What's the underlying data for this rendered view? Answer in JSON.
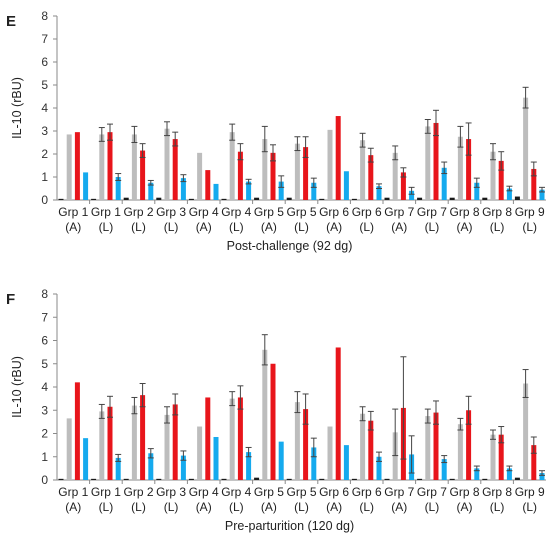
{
  "chart_data": [
    {
      "type": "bar",
      "panel_label": "E",
      "ylabel": "IL-10 (rBU)",
      "xlabel": "Post-challenge (92 dg)",
      "ylim": [
        0,
        8
      ],
      "yticks": [
        0,
        1,
        2,
        3,
        4,
        5,
        6,
        7,
        8
      ],
      "grid": false,
      "categories": [
        {
          "line1": "Grp 1",
          "line2": "(A)"
        },
        {
          "line1": "Grp 1",
          "line2": "(L)"
        },
        {
          "line1": "Grp 2",
          "line2": "(L)"
        },
        {
          "line1": "Grp 3",
          "line2": "(L)"
        },
        {
          "line1": "Grp 4",
          "line2": "(A)"
        },
        {
          "line1": "Grp 4",
          "line2": "(L)"
        },
        {
          "line1": "Grp 5",
          "line2": "(A)"
        },
        {
          "line1": "Grp 5",
          "line2": "(L)"
        },
        {
          "line1": "Grp 6",
          "line2": "(A)"
        },
        {
          "line1": "Grp 6",
          "line2": "(L)"
        },
        {
          "line1": "Grp 7",
          "line2": "(A)"
        },
        {
          "line1": "Grp 7",
          "line2": "(L)"
        },
        {
          "line1": "Grp 8",
          "line2": "(A)"
        },
        {
          "line1": "Grp 8",
          "line2": "(L)"
        },
        {
          "line1": "Grp 9",
          "line2": "(L)"
        }
      ],
      "series": [
        {
          "color": "#1a1a1a",
          "values": [
            0.05,
            0.05,
            0.1,
            0.1,
            0.05,
            0.05,
            0.1,
            0.1,
            0.05,
            0.05,
            0.1,
            0.1,
            0.1,
            0.1,
            0.15
          ],
          "errors": [
            0,
            0,
            0,
            0,
            0,
            0,
            0,
            0,
            0,
            0,
            0,
            0,
            0,
            0,
            0
          ]
        },
        {
          "color": "#bdbdbd",
          "values": [
            2.85,
            2.85,
            2.85,
            3.1,
            2.05,
            2.95,
            2.65,
            2.45,
            3.05,
            2.6,
            2.05,
            3.2,
            2.75,
            2.1,
            4.45
          ],
          "errors": [
            0,
            0.3,
            0.35,
            0.3,
            0,
            0.35,
            0.55,
            0.3,
            0,
            0.3,
            0.3,
            0.3,
            0.45,
            0.35,
            0.45
          ]
        },
        {
          "color": "#e8151b",
          "values": [
            2.95,
            2.95,
            2.15,
            2.65,
            1.3,
            2.1,
            2.05,
            2.3,
            3.65,
            1.95,
            1.2,
            3.35,
            2.65,
            1.7,
            1.35
          ],
          "errors": [
            0,
            0.35,
            0.3,
            0.3,
            0,
            0.35,
            0.35,
            0.45,
            0,
            0.3,
            0.2,
            0.55,
            0.7,
            0.4,
            0.3
          ]
        },
        {
          "color": "#15aaee",
          "values": [
            1.2,
            1.0,
            0.75,
            0.95,
            0.7,
            0.8,
            0.8,
            0.75,
            1.25,
            0.6,
            0.4,
            1.4,
            0.75,
            0.5,
            0.45
          ],
          "errors": [
            0,
            0.15,
            0.1,
            0.15,
            0,
            0.1,
            0.25,
            0.2,
            0,
            0.1,
            0.15,
            0.25,
            0.2,
            0.1,
            0.1
          ]
        }
      ]
    },
    {
      "type": "bar",
      "panel_label": "F",
      "ylabel": "IL-10 (rBU)",
      "xlabel": "Pre-parturition (120 dg)",
      "ylim": [
        0,
        8
      ],
      "yticks": [
        0,
        1,
        2,
        3,
        4,
        5,
        6,
        7,
        8
      ],
      "grid": false,
      "categories": [
        {
          "line1": "Grp 1",
          "line2": "(A)"
        },
        {
          "line1": "Grp 1",
          "line2": "(L)"
        },
        {
          "line1": "Grp 2",
          "line2": "(L)"
        },
        {
          "line1": "Grp 3",
          "line2": "(L)"
        },
        {
          "line1": "Grp 4",
          "line2": "(A)"
        },
        {
          "line1": "Grp 4",
          "line2": "(L)"
        },
        {
          "line1": "Grp 5",
          "line2": "(A)"
        },
        {
          "line1": "Grp 5",
          "line2": "(L)"
        },
        {
          "line1": "Grp 6",
          "line2": "(A)"
        },
        {
          "line1": "Grp 6",
          "line2": "(L)"
        },
        {
          "line1": "Grp 7",
          "line2": "(A)"
        },
        {
          "line1": "Grp 7",
          "line2": "(L)"
        },
        {
          "line1": "Grp 8",
          "line2": "(A)"
        },
        {
          "line1": "Grp 8",
          "line2": "(L)"
        },
        {
          "line1": "Grp 9",
          "line2": "(L)"
        }
      ],
      "series": [
        {
          "color": "#1a1a1a",
          "values": [
            0.05,
            0.05,
            0.05,
            0.05,
            0.05,
            0.05,
            0.1,
            0.05,
            0.05,
            0.05,
            0.05,
            0.05,
            0.05,
            0.05,
            0.1
          ],
          "errors": [
            0,
            0,
            0,
            0,
            0,
            0,
            0,
            0,
            0,
            0,
            0,
            0,
            0,
            0,
            0
          ]
        },
        {
          "color": "#bdbdbd",
          "values": [
            2.65,
            2.95,
            3.2,
            2.8,
            2.3,
            3.5,
            5.6,
            3.35,
            2.3,
            2.85,
            2.05,
            2.75,
            2.4,
            1.95,
            4.15
          ],
          "errors": [
            0,
            0.3,
            0.35,
            0.35,
            0,
            0.3,
            0.65,
            0.45,
            0,
            0.3,
            1.0,
            0.3,
            0.25,
            0.2,
            0.6
          ]
        },
        {
          "color": "#e8151b",
          "values": [
            4.2,
            3.15,
            3.65,
            3.25,
            3.55,
            3.55,
            5.0,
            3.05,
            5.7,
            2.55,
            3.1,
            2.9,
            3.0,
            1.95,
            1.5
          ],
          "errors": [
            0,
            0.45,
            0.5,
            0.45,
            0,
            0.5,
            0,
            0.65,
            0,
            0.4,
            2.2,
            0.5,
            0.6,
            0.35,
            0.35
          ]
        },
        {
          "color": "#15aaee",
          "values": [
            1.8,
            0.95,
            1.15,
            1.05,
            1.85,
            1.2,
            1.65,
            1.4,
            1.5,
            1.0,
            1.1,
            0.9,
            0.5,
            0.5,
            0.3
          ],
          "errors": [
            0,
            0.15,
            0.2,
            0.2,
            0,
            0.2,
            0,
            0.4,
            0,
            0.2,
            0.8,
            0.15,
            0.1,
            0.1,
            0.1
          ]
        }
      ]
    }
  ]
}
